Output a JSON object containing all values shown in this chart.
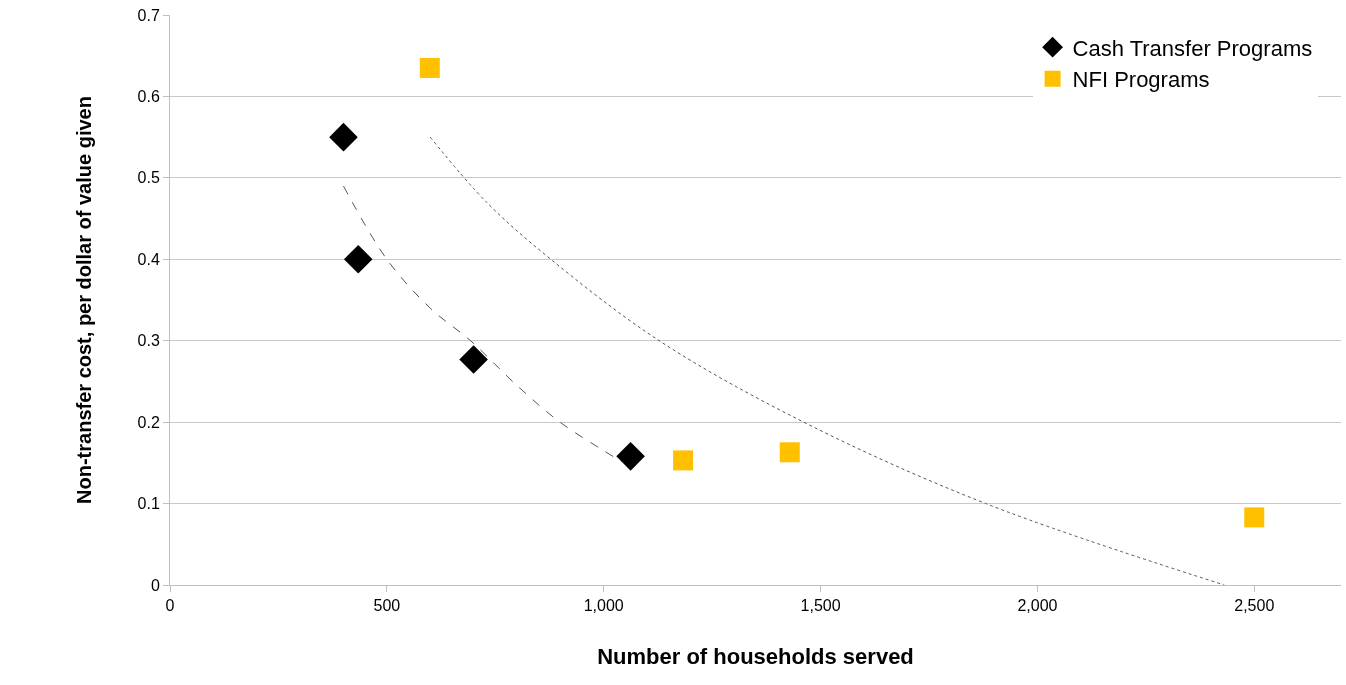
{
  "chart_data": {
    "type": "scatter",
    "xlabel": "Number of households served",
    "ylabel": "Non-transfer cost, per dollar of value given",
    "xlim": [
      0,
      2700
    ],
    "xticks": [
      0,
      500,
      {
        "value": 1000,
        "label": "1,000"
      },
      {
        "value": 1500,
        "label": "1,500"
      },
      {
        "value": 2000,
        "label": "2,000"
      },
      {
        "value": 2500,
        "label": "2,500"
      }
    ],
    "ylim": [
      0,
      0.7
    ],
    "yticks": [
      0,
      0.1,
      0.2,
      0.3,
      0.4,
      0.5,
      0.6,
      0.7
    ],
    "grid": "y",
    "legend": "top right",
    "series": [
      {
        "name": "Cash Transfer Programs",
        "color": "#000000",
        "marker": "diamond",
        "x": [
          400,
          434,
          700,
          1062
        ],
        "values": [
          0.55,
          0.4,
          0.277,
          0.158
        ]
      },
      {
        "name": "NFI Programs",
        "color": "#ffc000",
        "marker": "square",
        "x": [
          599,
          1183,
          1429,
          2500
        ],
        "values": [
          0.635,
          0.153,
          0.163,
          0.083
        ]
      },
      {
        "type": "line",
        "color": "#555555",
        "line_style": "dashed",
        "x": [
          400,
          500,
          600,
          693,
          800,
          899,
          1000,
          1046
        ],
        "values": [
          0.49,
          0.4,
          0.34,
          0.3,
          0.245,
          0.2,
          0.165,
          0.15
        ]
      },
      {
        "type": "line",
        "color": "#555555",
        "line_style": "dotted",
        "x": [
          600,
          730,
          878,
          1128,
          1461,
          1881,
          2431
        ],
        "values": [
          0.55,
          0.47,
          0.4,
          0.3,
          0.2,
          0.1,
          0
        ]
      }
    ]
  }
}
